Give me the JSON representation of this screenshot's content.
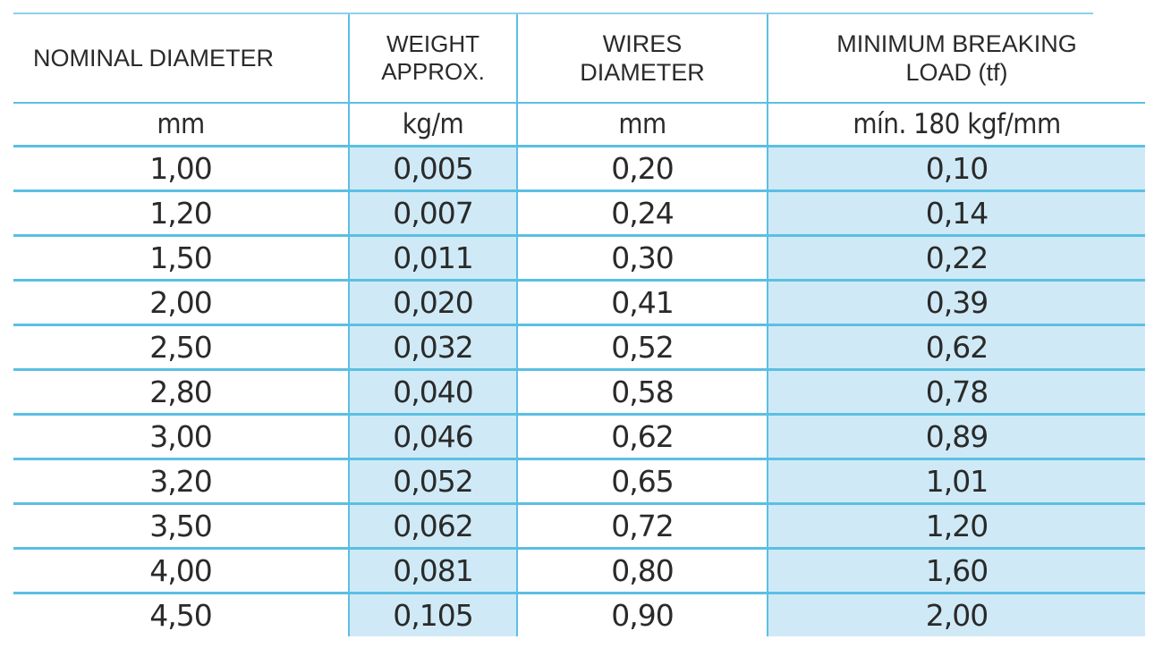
{
  "table": {
    "headers": [
      "NOMINAL DIAMETER",
      "WEIGHT APPROX.",
      "WIRES DIAMETER",
      "MINIMUM BREAKING LOAD (tf)"
    ],
    "units": [
      "mm",
      "kg/m",
      "mm",
      "mín. 180 kgf/mm"
    ],
    "rows": [
      [
        "1,00",
        "0,005",
        "0,20",
        "0,10"
      ],
      [
        "1,20",
        "0,007",
        "0,24",
        "0,14"
      ],
      [
        "1,50",
        "0,011",
        "0,30",
        "0,22"
      ],
      [
        "2,00",
        "0,020",
        "0,41",
        "0,39"
      ],
      [
        "2,50",
        "0,032",
        "0,52",
        "0,62"
      ],
      [
        "2,80",
        "0,040",
        "0,58",
        "0,78"
      ],
      [
        "3,00",
        "0,046",
        "0,62",
        "0,89"
      ],
      [
        "3,20",
        "0,052",
        "0,65",
        "1,01"
      ],
      [
        "3,50",
        "0,062",
        "0,72",
        "1,20"
      ],
      [
        "4,00",
        "0,081",
        "0,80",
        "1,60"
      ],
      [
        "4,50",
        "0,105",
        "0,90",
        "2,00"
      ]
    ]
  }
}
